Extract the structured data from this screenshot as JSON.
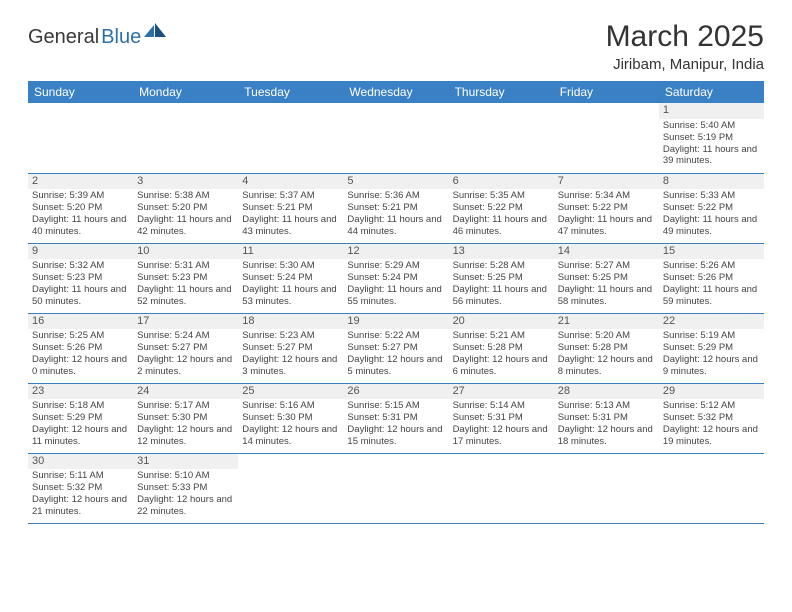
{
  "logo": {
    "part1": "General",
    "part2": "Blue"
  },
  "title": "March 2025",
  "location": "Jiribam, Manipur, India",
  "colors": {
    "header_bg": "#3a80c4",
    "header_text": "#ffffff",
    "daynum_bg": "#f0f0f0",
    "border": "#3a80c4",
    "logo_dark": "#3a3a3a",
    "logo_blue": "#2f6fa8"
  },
  "day_headers": [
    "Sunday",
    "Monday",
    "Tuesday",
    "Wednesday",
    "Thursday",
    "Friday",
    "Saturday"
  ],
  "weeks": [
    [
      {
        "n": "",
        "sr": "",
        "ss": "",
        "dl": ""
      },
      {
        "n": "",
        "sr": "",
        "ss": "",
        "dl": ""
      },
      {
        "n": "",
        "sr": "",
        "ss": "",
        "dl": ""
      },
      {
        "n": "",
        "sr": "",
        "ss": "",
        "dl": ""
      },
      {
        "n": "",
        "sr": "",
        "ss": "",
        "dl": ""
      },
      {
        "n": "",
        "sr": "",
        "ss": "",
        "dl": ""
      },
      {
        "n": "1",
        "sr": "Sunrise: 5:40 AM",
        "ss": "Sunset: 5:19 PM",
        "dl": "Daylight: 11 hours and 39 minutes."
      }
    ],
    [
      {
        "n": "2",
        "sr": "Sunrise: 5:39 AM",
        "ss": "Sunset: 5:20 PM",
        "dl": "Daylight: 11 hours and 40 minutes."
      },
      {
        "n": "3",
        "sr": "Sunrise: 5:38 AM",
        "ss": "Sunset: 5:20 PM",
        "dl": "Daylight: 11 hours and 42 minutes."
      },
      {
        "n": "4",
        "sr": "Sunrise: 5:37 AM",
        "ss": "Sunset: 5:21 PM",
        "dl": "Daylight: 11 hours and 43 minutes."
      },
      {
        "n": "5",
        "sr": "Sunrise: 5:36 AM",
        "ss": "Sunset: 5:21 PM",
        "dl": "Daylight: 11 hours and 44 minutes."
      },
      {
        "n": "6",
        "sr": "Sunrise: 5:35 AM",
        "ss": "Sunset: 5:22 PM",
        "dl": "Daylight: 11 hours and 46 minutes."
      },
      {
        "n": "7",
        "sr": "Sunrise: 5:34 AM",
        "ss": "Sunset: 5:22 PM",
        "dl": "Daylight: 11 hours and 47 minutes."
      },
      {
        "n": "8",
        "sr": "Sunrise: 5:33 AM",
        "ss": "Sunset: 5:22 PM",
        "dl": "Daylight: 11 hours and 49 minutes."
      }
    ],
    [
      {
        "n": "9",
        "sr": "Sunrise: 5:32 AM",
        "ss": "Sunset: 5:23 PM",
        "dl": "Daylight: 11 hours and 50 minutes."
      },
      {
        "n": "10",
        "sr": "Sunrise: 5:31 AM",
        "ss": "Sunset: 5:23 PM",
        "dl": "Daylight: 11 hours and 52 minutes."
      },
      {
        "n": "11",
        "sr": "Sunrise: 5:30 AM",
        "ss": "Sunset: 5:24 PM",
        "dl": "Daylight: 11 hours and 53 minutes."
      },
      {
        "n": "12",
        "sr": "Sunrise: 5:29 AM",
        "ss": "Sunset: 5:24 PM",
        "dl": "Daylight: 11 hours and 55 minutes."
      },
      {
        "n": "13",
        "sr": "Sunrise: 5:28 AM",
        "ss": "Sunset: 5:25 PM",
        "dl": "Daylight: 11 hours and 56 minutes."
      },
      {
        "n": "14",
        "sr": "Sunrise: 5:27 AM",
        "ss": "Sunset: 5:25 PM",
        "dl": "Daylight: 11 hours and 58 minutes."
      },
      {
        "n": "15",
        "sr": "Sunrise: 5:26 AM",
        "ss": "Sunset: 5:26 PM",
        "dl": "Daylight: 11 hours and 59 minutes."
      }
    ],
    [
      {
        "n": "16",
        "sr": "Sunrise: 5:25 AM",
        "ss": "Sunset: 5:26 PM",
        "dl": "Daylight: 12 hours and 0 minutes."
      },
      {
        "n": "17",
        "sr": "Sunrise: 5:24 AM",
        "ss": "Sunset: 5:27 PM",
        "dl": "Daylight: 12 hours and 2 minutes."
      },
      {
        "n": "18",
        "sr": "Sunrise: 5:23 AM",
        "ss": "Sunset: 5:27 PM",
        "dl": "Daylight: 12 hours and 3 minutes."
      },
      {
        "n": "19",
        "sr": "Sunrise: 5:22 AM",
        "ss": "Sunset: 5:27 PM",
        "dl": "Daylight: 12 hours and 5 minutes."
      },
      {
        "n": "20",
        "sr": "Sunrise: 5:21 AM",
        "ss": "Sunset: 5:28 PM",
        "dl": "Daylight: 12 hours and 6 minutes."
      },
      {
        "n": "21",
        "sr": "Sunrise: 5:20 AM",
        "ss": "Sunset: 5:28 PM",
        "dl": "Daylight: 12 hours and 8 minutes."
      },
      {
        "n": "22",
        "sr": "Sunrise: 5:19 AM",
        "ss": "Sunset: 5:29 PM",
        "dl": "Daylight: 12 hours and 9 minutes."
      }
    ],
    [
      {
        "n": "23",
        "sr": "Sunrise: 5:18 AM",
        "ss": "Sunset: 5:29 PM",
        "dl": "Daylight: 12 hours and 11 minutes."
      },
      {
        "n": "24",
        "sr": "Sunrise: 5:17 AM",
        "ss": "Sunset: 5:30 PM",
        "dl": "Daylight: 12 hours and 12 minutes."
      },
      {
        "n": "25",
        "sr": "Sunrise: 5:16 AM",
        "ss": "Sunset: 5:30 PM",
        "dl": "Daylight: 12 hours and 14 minutes."
      },
      {
        "n": "26",
        "sr": "Sunrise: 5:15 AM",
        "ss": "Sunset: 5:31 PM",
        "dl": "Daylight: 12 hours and 15 minutes."
      },
      {
        "n": "27",
        "sr": "Sunrise: 5:14 AM",
        "ss": "Sunset: 5:31 PM",
        "dl": "Daylight: 12 hours and 17 minutes."
      },
      {
        "n": "28",
        "sr": "Sunrise: 5:13 AM",
        "ss": "Sunset: 5:31 PM",
        "dl": "Daylight: 12 hours and 18 minutes."
      },
      {
        "n": "29",
        "sr": "Sunrise: 5:12 AM",
        "ss": "Sunset: 5:32 PM",
        "dl": "Daylight: 12 hours and 19 minutes."
      }
    ],
    [
      {
        "n": "30",
        "sr": "Sunrise: 5:11 AM",
        "ss": "Sunset: 5:32 PM",
        "dl": "Daylight: 12 hours and 21 minutes."
      },
      {
        "n": "31",
        "sr": "Sunrise: 5:10 AM",
        "ss": "Sunset: 5:33 PM",
        "dl": "Daylight: 12 hours and 22 minutes."
      },
      {
        "n": "",
        "sr": "",
        "ss": "",
        "dl": ""
      },
      {
        "n": "",
        "sr": "",
        "ss": "",
        "dl": ""
      },
      {
        "n": "",
        "sr": "",
        "ss": "",
        "dl": ""
      },
      {
        "n": "",
        "sr": "",
        "ss": "",
        "dl": ""
      },
      {
        "n": "",
        "sr": "",
        "ss": "",
        "dl": ""
      }
    ]
  ]
}
